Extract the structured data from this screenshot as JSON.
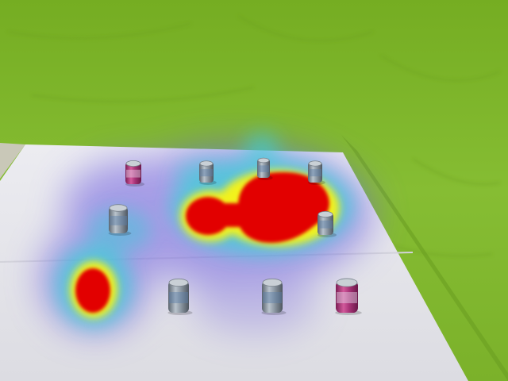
{
  "scene": {
    "backdrop_color": "#7fb52c",
    "floor_color": "#e9e9ee",
    "heatmap": {
      "colormap": [
        "#3b3bd6",
        "#3fd0d8",
        "#f2f21a",
        "#e60000"
      ],
      "hotspots": [
        {
          "intensity": 1.0
        },
        {
          "intensity": 0.95
        },
        {
          "intensity": 0.9
        },
        {
          "intensity": 0.25
        },
        {
          "intensity": 0.2
        }
      ]
    },
    "cans": [
      {
        "type": "pink"
      },
      {
        "type": "silver"
      },
      {
        "type": "silver"
      },
      {
        "type": "silver"
      },
      {
        "type": "silver"
      },
      {
        "type": "silver"
      },
      {
        "type": "silver"
      },
      {
        "type": "silver"
      },
      {
        "type": "pink"
      }
    ]
  }
}
